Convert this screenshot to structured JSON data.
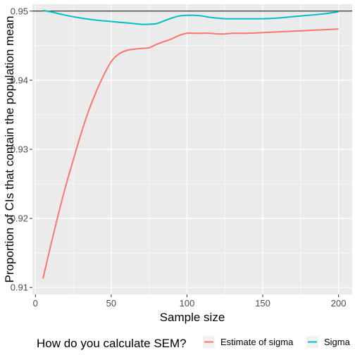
{
  "chart_data": {
    "type": "line",
    "title": "",
    "xlabel": "Sample size",
    "ylabel": "Proportion of CIs that contain the population mean",
    "xlim": [
      -2,
      209
    ],
    "ylim": [
      0.909,
      0.951
    ],
    "x_ticks": [
      0,
      50,
      100,
      150,
      200
    ],
    "x_tick_labels": [
      "0",
      "50",
      "100",
      "150",
      "200"
    ],
    "y_ticks": [
      0.91,
      0.92,
      0.93,
      0.94,
      0.95
    ],
    "y_tick_labels": [
      "0.91",
      "0.92",
      "0.93",
      "0.94",
      "0.95"
    ],
    "hline": 0.95,
    "grid": true,
    "legend": {
      "position": "bottom",
      "title": "How do you calculate SEM?"
    },
    "series": [
      {
        "name": "Estimate of sigma",
        "color": "#F8766D",
        "x": [
          5,
          10,
          15,
          20,
          25,
          30,
          35,
          40,
          45,
          50,
          55,
          60,
          65,
          70,
          75,
          80,
          85,
          90,
          95,
          100,
          105,
          110,
          115,
          120,
          125,
          130,
          140,
          150,
          160,
          170,
          180,
          190,
          200
        ],
        "y": [
          0.9113,
          0.916,
          0.9205,
          0.9247,
          0.9285,
          0.9322,
          0.9355,
          0.9383,
          0.9407,
          0.9427,
          0.9438,
          0.9443,
          0.9445,
          0.9446,
          0.9447,
          0.9452,
          0.9456,
          0.946,
          0.9465,
          0.9468,
          0.9468,
          0.9468,
          0.9468,
          0.9467,
          0.9467,
          0.9468,
          0.9468,
          0.9469,
          0.947,
          0.9471,
          0.9472,
          0.9473,
          0.9474
        ]
      },
      {
        "name": "Sigma",
        "color": "#00BFC4",
        "x": [
          5,
          10,
          20,
          30,
          40,
          50,
          60,
          65,
          70,
          75,
          80,
          85,
          90,
          95,
          100,
          105,
          110,
          115,
          120,
          125,
          130,
          140,
          150,
          160,
          170,
          180,
          190,
          200
        ],
        "y": [
          0.9501,
          0.9499,
          0.9494,
          0.949,
          0.9487,
          0.9485,
          0.9483,
          0.9482,
          0.9481,
          0.9481,
          0.9482,
          0.9486,
          0.949,
          0.9493,
          0.9494,
          0.9494,
          0.9493,
          0.9491,
          0.949,
          0.9489,
          0.9489,
          0.9489,
          0.9489,
          0.949,
          0.9492,
          0.9494,
          0.9496,
          0.9499
        ]
      }
    ]
  }
}
